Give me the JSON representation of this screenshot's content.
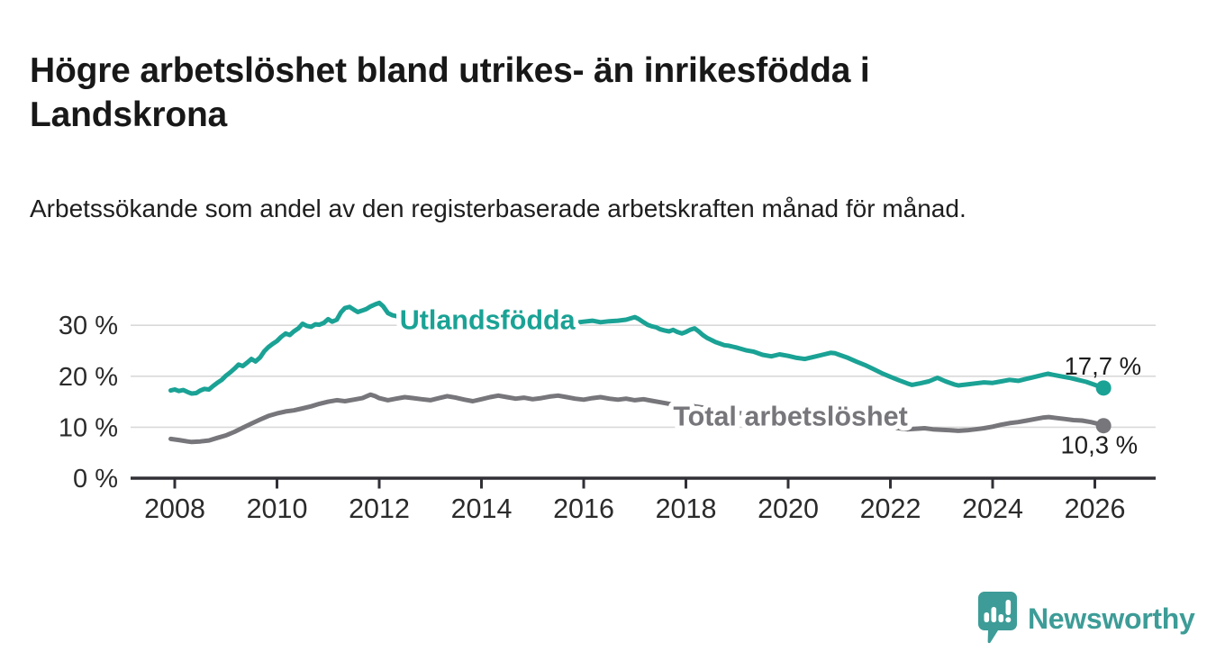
{
  "header": {
    "title": "Högre arbetslöshet bland utrikes- än inrikesfödda i Landskrona",
    "subtitle": "Arbetssökande som andel av den registerbaserade arbetskraften månad för månad."
  },
  "branding": {
    "logo_text": "Newsworthy",
    "logo_color": "#3d9c97",
    "logo_icon": "bar-chart-speech-bubble-icon"
  },
  "chart_data": {
    "type": "line",
    "title": "",
    "xlabel": "",
    "ylabel": "",
    "grid": true,
    "legend_position": "inline-labels",
    "colors": {
      "gridline": "#d9d9d9",
      "axis": "#303036",
      "tick_label": "#2b2b2b",
      "value_label": "#1d1d1d"
    },
    "x_axis": {
      "range": [
        2007.85,
        2027.2
      ],
      "ticks": [
        2008,
        2010,
        2012,
        2014,
        2016,
        2018,
        2020,
        2022,
        2024,
        2026
      ],
      "tick_labels": [
        "2008",
        "2010",
        "2012",
        "2014",
        "2016",
        "2018",
        "2020",
        "2022",
        "2024",
        "2026"
      ]
    },
    "y_axis": {
      "range": [
        0,
        36
      ],
      "ticks": [
        {
          "value": 0,
          "label": "0 %"
        },
        {
          "value": 10,
          "label": "10 %"
        },
        {
          "value": 20,
          "label": "20 %"
        },
        {
          "value": 30,
          "label": "30 %"
        }
      ]
    },
    "series": [
      {
        "name": "Utlandsfödda",
        "color": "#1aa295",
        "end_label": "17,7 %",
        "end_value": 17.7,
        "label_at": [
          2012.4,
          29.2
        ],
        "points": [
          [
            2007.92,
            17.2
          ],
          [
            2008.0,
            17.4
          ],
          [
            2008.08,
            17.1
          ],
          [
            2008.17,
            17.3
          ],
          [
            2008.25,
            16.9
          ],
          [
            2008.33,
            16.6
          ],
          [
            2008.42,
            16.7
          ],
          [
            2008.5,
            17.2
          ],
          [
            2008.58,
            17.5
          ],
          [
            2008.67,
            17.4
          ],
          [
            2008.75,
            18.1
          ],
          [
            2008.83,
            18.7
          ],
          [
            2008.92,
            19.3
          ],
          [
            2009.0,
            20.1
          ],
          [
            2009.08,
            20.7
          ],
          [
            2009.17,
            21.5
          ],
          [
            2009.25,
            22.3
          ],
          [
            2009.33,
            22.0
          ],
          [
            2009.42,
            22.7
          ],
          [
            2009.5,
            23.4
          ],
          [
            2009.58,
            22.9
          ],
          [
            2009.67,
            23.7
          ],
          [
            2009.75,
            24.9
          ],
          [
            2009.83,
            25.7
          ],
          [
            2009.92,
            26.4
          ],
          [
            2010.0,
            26.9
          ],
          [
            2010.08,
            27.7
          ],
          [
            2010.17,
            28.4
          ],
          [
            2010.25,
            28.1
          ],
          [
            2010.33,
            28.8
          ],
          [
            2010.42,
            29.4
          ],
          [
            2010.5,
            30.3
          ],
          [
            2010.58,
            29.9
          ],
          [
            2010.67,
            29.7
          ],
          [
            2010.75,
            30.2
          ],
          [
            2010.83,
            30.1
          ],
          [
            2010.92,
            30.5
          ],
          [
            2011.0,
            31.2
          ],
          [
            2011.08,
            30.7
          ],
          [
            2011.17,
            31.1
          ],
          [
            2011.25,
            32.5
          ],
          [
            2011.33,
            33.4
          ],
          [
            2011.42,
            33.6
          ],
          [
            2011.5,
            33.1
          ],
          [
            2011.58,
            32.6
          ],
          [
            2011.67,
            32.9
          ],
          [
            2011.75,
            33.2
          ],
          [
            2011.83,
            33.7
          ],
          [
            2011.92,
            34.1
          ],
          [
            2012.0,
            34.4
          ],
          [
            2012.08,
            33.7
          ],
          [
            2012.17,
            32.4
          ],
          [
            2012.25,
            32.0
          ],
          [
            2012.33,
            31.8
          ],
          [
            2012.5,
            31.5
          ],
          [
            2012.75,
            31.2
          ],
          [
            2013.0,
            31.0
          ],
          [
            2013.25,
            30.7
          ],
          [
            2013.42,
            30.2
          ],
          [
            2013.58,
            30.6
          ],
          [
            2013.83,
            31.0
          ],
          [
            2014.08,
            31.2
          ],
          [
            2014.33,
            30.8
          ],
          [
            2014.58,
            31.0
          ],
          [
            2014.83,
            30.6
          ],
          [
            2015.08,
            30.9
          ],
          [
            2015.33,
            31.1
          ],
          [
            2015.58,
            30.7
          ],
          [
            2015.83,
            30.5
          ],
          [
            2016.0,
            30.7
          ],
          [
            2016.17,
            30.9
          ],
          [
            2016.33,
            30.6
          ],
          [
            2016.5,
            30.8
          ],
          [
            2016.67,
            30.9
          ],
          [
            2016.83,
            31.1
          ],
          [
            2017.0,
            31.6
          ],
          [
            2017.08,
            31.2
          ],
          [
            2017.17,
            30.6
          ],
          [
            2017.25,
            30.1
          ],
          [
            2017.33,
            29.8
          ],
          [
            2017.42,
            29.6
          ],
          [
            2017.5,
            29.2
          ],
          [
            2017.58,
            29.0
          ],
          [
            2017.67,
            28.8
          ],
          [
            2017.75,
            29.1
          ],
          [
            2017.83,
            28.7
          ],
          [
            2017.92,
            28.4
          ],
          [
            2018.0,
            28.7
          ],
          [
            2018.08,
            29.1
          ],
          [
            2018.17,
            29.4
          ],
          [
            2018.25,
            28.8
          ],
          [
            2018.33,
            28.1
          ],
          [
            2018.42,
            27.5
          ],
          [
            2018.5,
            27.1
          ],
          [
            2018.58,
            26.7
          ],
          [
            2018.67,
            26.4
          ],
          [
            2018.75,
            26.1
          ],
          [
            2018.83,
            26.0
          ],
          [
            2018.92,
            25.8
          ],
          [
            2019.0,
            25.6
          ],
          [
            2019.17,
            25.1
          ],
          [
            2019.33,
            24.8
          ],
          [
            2019.5,
            24.2
          ],
          [
            2019.67,
            23.9
          ],
          [
            2019.83,
            24.3
          ],
          [
            2020.0,
            24.0
          ],
          [
            2020.17,
            23.6
          ],
          [
            2020.33,
            23.4
          ],
          [
            2020.5,
            23.8
          ],
          [
            2020.67,
            24.2
          ],
          [
            2020.83,
            24.6
          ],
          [
            2020.92,
            24.5
          ],
          [
            2021.0,
            24.2
          ],
          [
            2021.17,
            23.6
          ],
          [
            2021.33,
            22.9
          ],
          [
            2021.5,
            22.2
          ],
          [
            2021.67,
            21.4
          ],
          [
            2021.83,
            20.6
          ],
          [
            2022.0,
            19.9
          ],
          [
            2022.17,
            19.2
          ],
          [
            2022.33,
            18.6
          ],
          [
            2022.42,
            18.3
          ],
          [
            2022.58,
            18.6
          ],
          [
            2022.75,
            19.0
          ],
          [
            2022.92,
            19.7
          ],
          [
            2023.08,
            19.0
          ],
          [
            2023.25,
            18.4
          ],
          [
            2023.33,
            18.2
          ],
          [
            2023.5,
            18.4
          ],
          [
            2023.67,
            18.6
          ],
          [
            2023.83,
            18.8
          ],
          [
            2024.0,
            18.7
          ],
          [
            2024.17,
            19.0
          ],
          [
            2024.33,
            19.3
          ],
          [
            2024.5,
            19.1
          ],
          [
            2024.67,
            19.5
          ],
          [
            2024.83,
            19.9
          ],
          [
            2025.0,
            20.3
          ],
          [
            2025.08,
            20.5
          ],
          [
            2025.17,
            20.3
          ],
          [
            2025.33,
            20.0
          ],
          [
            2025.5,
            19.7
          ],
          [
            2025.67,
            19.3
          ],
          [
            2025.83,
            18.9
          ],
          [
            2026.0,
            18.3
          ],
          [
            2026.17,
            17.7
          ]
        ]
      },
      {
        "name": "Total arbetslöshet",
        "color": "#76767b",
        "end_label": "10,3 %",
        "end_value": 10.3,
        "label_at": [
          2017.75,
          10.3
        ],
        "points": [
          [
            2007.92,
            7.7
          ],
          [
            2008.08,
            7.5
          ],
          [
            2008.25,
            7.2
          ],
          [
            2008.33,
            7.1
          ],
          [
            2008.5,
            7.2
          ],
          [
            2008.67,
            7.4
          ],
          [
            2008.83,
            7.9
          ],
          [
            2009.0,
            8.4
          ],
          [
            2009.17,
            9.1
          ],
          [
            2009.33,
            9.9
          ],
          [
            2009.5,
            10.7
          ],
          [
            2009.67,
            11.5
          ],
          [
            2009.83,
            12.2
          ],
          [
            2010.0,
            12.7
          ],
          [
            2010.17,
            13.1
          ],
          [
            2010.33,
            13.3
          ],
          [
            2010.5,
            13.7
          ],
          [
            2010.67,
            14.1
          ],
          [
            2010.83,
            14.6
          ],
          [
            2011.0,
            15.0
          ],
          [
            2011.17,
            15.3
          ],
          [
            2011.33,
            15.1
          ],
          [
            2011.5,
            15.4
          ],
          [
            2011.67,
            15.7
          ],
          [
            2011.83,
            16.4
          ],
          [
            2011.92,
            16.1
          ],
          [
            2012.0,
            15.7
          ],
          [
            2012.17,
            15.3
          ],
          [
            2012.33,
            15.6
          ],
          [
            2012.5,
            15.9
          ],
          [
            2012.67,
            15.7
          ],
          [
            2012.83,
            15.5
          ],
          [
            2013.0,
            15.3
          ],
          [
            2013.17,
            15.7
          ],
          [
            2013.33,
            16.1
          ],
          [
            2013.5,
            15.8
          ],
          [
            2013.67,
            15.4
          ],
          [
            2013.83,
            15.1
          ],
          [
            2014.0,
            15.5
          ],
          [
            2014.17,
            15.9
          ],
          [
            2014.33,
            16.2
          ],
          [
            2014.5,
            15.9
          ],
          [
            2014.67,
            15.6
          ],
          [
            2014.83,
            15.8
          ],
          [
            2015.0,
            15.5
          ],
          [
            2015.17,
            15.7
          ],
          [
            2015.33,
            16.0
          ],
          [
            2015.5,
            16.2
          ],
          [
            2015.67,
            15.9
          ],
          [
            2015.83,
            15.6
          ],
          [
            2016.0,
            15.4
          ],
          [
            2016.17,
            15.7
          ],
          [
            2016.33,
            15.9
          ],
          [
            2016.5,
            15.6
          ],
          [
            2016.67,
            15.4
          ],
          [
            2016.83,
            15.6
          ],
          [
            2017.0,
            15.3
          ],
          [
            2017.17,
            15.5
          ],
          [
            2017.33,
            15.2
          ],
          [
            2017.5,
            14.9
          ],
          [
            2017.67,
            14.6
          ],
          [
            2017.83,
            14.3
          ],
          [
            2018.0,
            14.5
          ],
          [
            2018.17,
            14.1
          ],
          [
            2018.5,
            13.6
          ],
          [
            2018.83,
            13.1
          ],
          [
            2019.17,
            12.6
          ],
          [
            2019.5,
            12.3
          ],
          [
            2019.83,
            11.9
          ],
          [
            2020.17,
            11.6
          ],
          [
            2020.5,
            11.3
          ],
          [
            2020.83,
            11.0
          ],
          [
            2021.17,
            10.7
          ],
          [
            2021.5,
            10.4
          ],
          [
            2021.83,
            10.1
          ],
          [
            2022.17,
            9.8
          ],
          [
            2022.33,
            9.6
          ],
          [
            2022.5,
            9.7
          ],
          [
            2022.67,
            9.8
          ],
          [
            2022.83,
            9.6
          ],
          [
            2023.0,
            9.5
          ],
          [
            2023.17,
            9.4
          ],
          [
            2023.33,
            9.3
          ],
          [
            2023.5,
            9.4
          ],
          [
            2023.67,
            9.6
          ],
          [
            2023.83,
            9.8
          ],
          [
            2024.0,
            10.1
          ],
          [
            2024.17,
            10.5
          ],
          [
            2024.33,
            10.8
          ],
          [
            2024.5,
            11.0
          ],
          [
            2024.67,
            11.3
          ],
          [
            2024.83,
            11.6
          ],
          [
            2025.0,
            11.9
          ],
          [
            2025.1,
            12.0
          ],
          [
            2025.25,
            11.8
          ],
          [
            2025.42,
            11.6
          ],
          [
            2025.58,
            11.4
          ],
          [
            2025.75,
            11.3
          ],
          [
            2025.92,
            11.0
          ],
          [
            2026.05,
            10.7
          ],
          [
            2026.17,
            10.3
          ]
        ]
      }
    ]
  }
}
